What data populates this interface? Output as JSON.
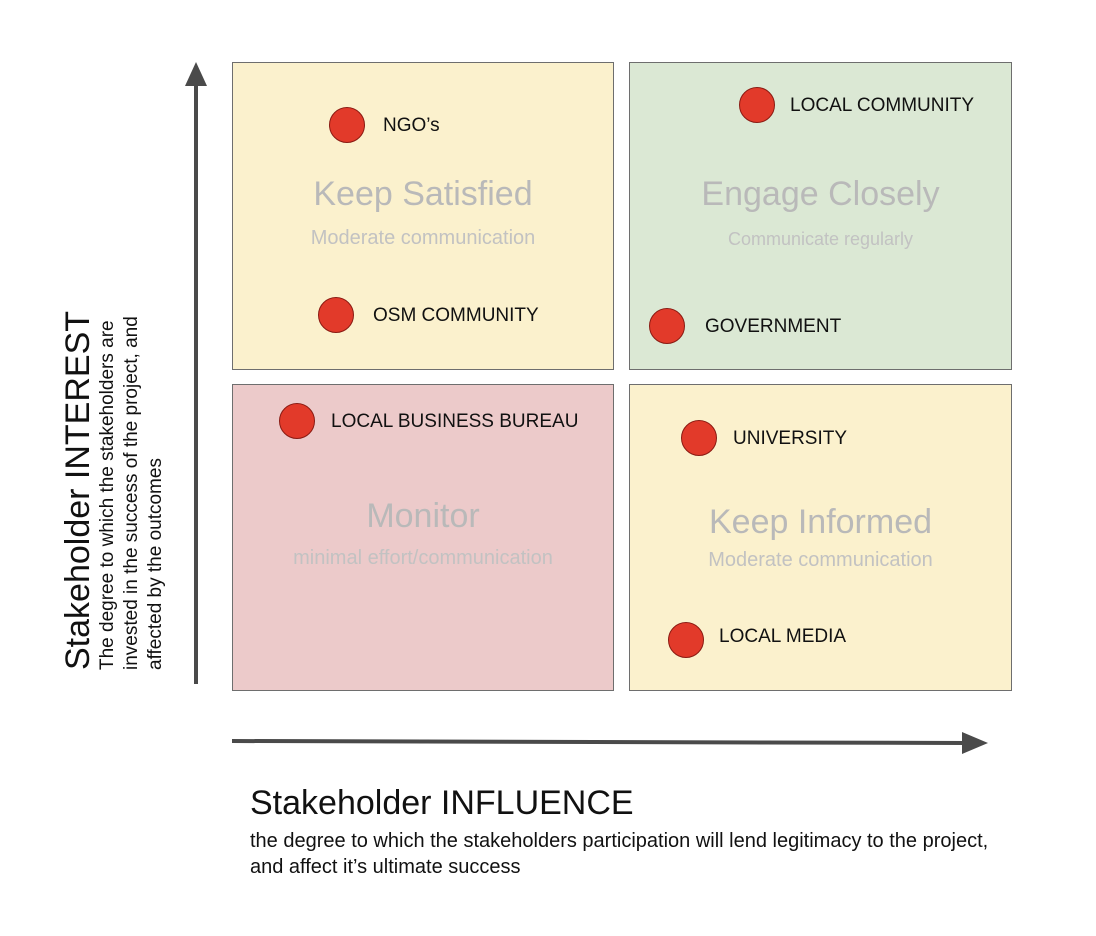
{
  "quadrants": {
    "keep_satisfied": {
      "title": "Keep Satisfied",
      "subtitle": "Moderate communication",
      "color": "#fbf1cd"
    },
    "engage_closely": {
      "title": "Engage Closely",
      "subtitle": "Communicate regularly",
      "color": "#dbe8d4"
    },
    "monitor": {
      "title": "Monitor",
      "subtitle": "minimal effort/communication",
      "color": "#eccaca"
    },
    "keep_informed": {
      "title": "Keep Informed",
      "subtitle": "Moderate communication",
      "color": "#fbf1cd"
    }
  },
  "stakeholders": {
    "ngos": "NGO’s",
    "osm_community": "OSM COMMUNITY",
    "local_community": "LOCAL COMMUNITY",
    "government": "GOVERNMENT",
    "local_business_bureau": "LOCAL BUSINESS BUREAU",
    "university": "UNIVERSITY",
    "local_media": "LOCAL MEDIA"
  },
  "marker_color": "#e23a2a",
  "y_axis": {
    "title": "Stakeholder INTEREST",
    "description": "The degree to which the stakeholders are invested in the success of the project, and affected by the outcomes"
  },
  "x_axis": {
    "title": "Stakeholder INFLUENCE",
    "description": "the degree to which the stakeholders participation will lend legitimacy to the project, and affect it’s ultimate success"
  }
}
